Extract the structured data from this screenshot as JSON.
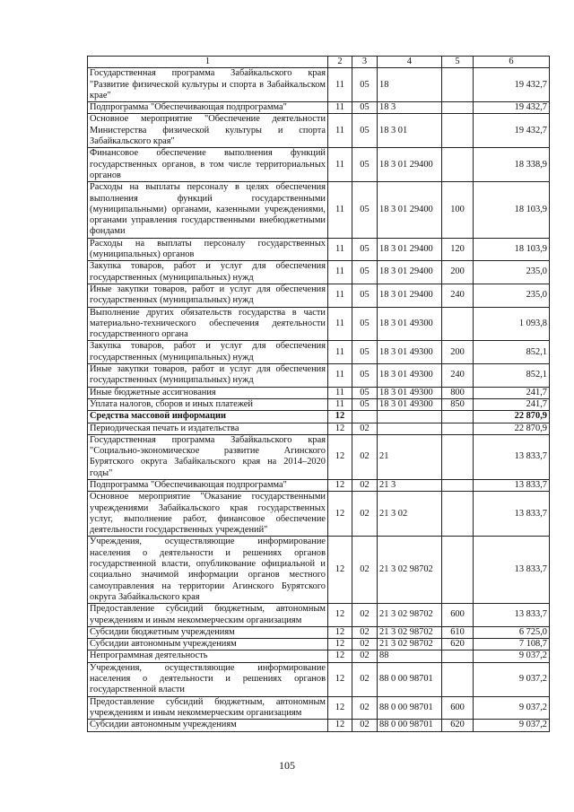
{
  "table": {
    "header": [
      "1",
      "2",
      "3",
      "4",
      "5",
      "6"
    ],
    "rows": [
      {
        "name": "Государственная программа Забайкальского края \"Развитие физической культуры и спорта в Забайкальском крае\"",
        "c2": "11",
        "c3": "05",
        "c4": "18",
        "c5": "",
        "c6": "19 432,7"
      },
      {
        "name": "Подпрограмма \"Обеспечивающая подпрограмма\"",
        "c2": "11",
        "c3": "05",
        "c4": "18 3",
        "c5": "",
        "c6": "19 432,7"
      },
      {
        "name": "Основное мероприятие \"Обеспечение деятельности Министерства физической культуры и спорта Забайкальского края\"",
        "c2": "11",
        "c3": "05",
        "c4": "18 3 01",
        "c5": "",
        "c6": "19 432,7"
      },
      {
        "name": "Финансовое обеспечение выполнения функций государственных органов, в том числе территориальных органов",
        "c2": "11",
        "c3": "05",
        "c4": "18 3 01 29400",
        "c5": "",
        "c6": "18 338,9"
      },
      {
        "name": "Расходы на выплаты персоналу в целях обеспечения выполнения функций государственными (муниципальными) органами, казенными учреждениями, органами управления государственными внебюджетными фондами",
        "c2": "11",
        "c3": "05",
        "c4": "18 3 01 29400",
        "c5": "100",
        "c6": "18 103,9"
      },
      {
        "name": "Расходы на выплаты персоналу государственных (муниципальных) органов",
        "c2": "11",
        "c3": "05",
        "c4": "18 3 01 29400",
        "c5": "120",
        "c6": "18 103,9"
      },
      {
        "name": "Закупка товаров, работ и услуг для обеспечения государственных (муниципальных) нужд",
        "c2": "11",
        "c3": "05",
        "c4": "18 3 01 29400",
        "c5": "200",
        "c6": "235,0"
      },
      {
        "name": "Иные закупки товаров, работ и услуг для обеспечения государственных (муниципальных) нужд",
        "c2": "11",
        "c3": "05",
        "c4": "18 3 01 29400",
        "c5": "240",
        "c6": "235,0"
      },
      {
        "name": "Выполнение других обязательств государства в части материально-технического обеспечения деятельности государственного органа",
        "c2": "11",
        "c3": "05",
        "c4": "18 3 01 49300",
        "c5": "",
        "c6": "1 093,8"
      },
      {
        "name": "Закупка товаров, работ и услуг для обеспечения государственных (муниципальных) нужд",
        "c2": "11",
        "c3": "05",
        "c4": "18 3 01 49300",
        "c5": "200",
        "c6": "852,1"
      },
      {
        "name": "Иные закупки товаров, работ и услуг для обеспечения государственных (муниципальных) нужд",
        "c2": "11",
        "c3": "05",
        "c4": "18 3 01 49300",
        "c5": "240",
        "c6": "852,1"
      },
      {
        "name": "Иные бюджетные ассигнования",
        "c2": "11",
        "c3": "05",
        "c4": "18 3 01 49300",
        "c5": "800",
        "c6": "241,7"
      },
      {
        "name": "Уплата налогов, сборов и иных платежей",
        "c2": "11",
        "c3": "05",
        "c4": "18 3 01 49300",
        "c5": "850",
        "c6": "241,7"
      },
      {
        "name": "Средства массовой информации",
        "c2": "12",
        "c3": "",
        "c4": "",
        "c5": "",
        "c6": "22 870,9",
        "bold": true
      },
      {
        "name": "Периодическая печать и издательства",
        "c2": "12",
        "c3": "02",
        "c4": "",
        "c5": "",
        "c6": "22 870,9"
      },
      {
        "name": "Государственная программа Забайкальского края \"Социально-экономическое развитие Агинского Бурятского округа Забайкальского края на 2014–2020 годы\"",
        "c2": "12",
        "c3": "02",
        "c4": "21",
        "c5": "",
        "c6": "13 833,7"
      },
      {
        "name": "Подпрограмма \"Обеспечивающая подпрограмма\"",
        "c2": "12",
        "c3": "02",
        "c4": "21 3",
        "c5": "",
        "c6": "13 833,7"
      },
      {
        "name": "Основное мероприятие \"Оказание государственными учреждениями Забайкальского края государственных услуг, выполнение работ, финансовое обеспечение деятельности государственных учреждений\"",
        "c2": "12",
        "c3": "02",
        "c4": "21 3 02",
        "c5": "",
        "c6": "13 833,7"
      },
      {
        "name": "Учреждения, осуществляющие информирование населения о деятельности и решениях органов государственной власти, опубликование официальной и социально значимой информации органов местного самоуправления на территории Агинского Бурятского округа Забайкальского края",
        "c2": "12",
        "c3": "02",
        "c4": "21 3 02 98702",
        "c5": "",
        "c6": "13 833,7"
      },
      {
        "name": "Предоставление субсидий бюджетным, автономным учреждениям и иным некоммерческим организациям",
        "c2": "12",
        "c3": "02",
        "c4": "21 3 02 98702",
        "c5": "600",
        "c6": "13 833,7"
      },
      {
        "name": "Субсидии бюджетным учреждениям",
        "c2": "12",
        "c3": "02",
        "c4": "21 3 02 98702",
        "c5": "610",
        "c6": "6 725,0"
      },
      {
        "name": "Субсидии автономным учреждениям",
        "c2": "12",
        "c3": "02",
        "c4": "21 3 02 98702",
        "c5": "620",
        "c6": "7 108,7"
      },
      {
        "name": "Непрограммная деятельность",
        "c2": "12",
        "c3": "02",
        "c4": "88",
        "c5": "",
        "c6": "9 037,2"
      },
      {
        "name": "Учреждения, осуществляющие информирование населения о деятельности и решениях органов государственной власти",
        "c2": "12",
        "c3": "02",
        "c4": "88 0 00 98701",
        "c5": "",
        "c6": "9 037,2"
      },
      {
        "name": "Предоставление субсидий бюджетным, автономным учреждениям и иным некоммерческим организациям",
        "c2": "12",
        "c3": "02",
        "c4": "88 0 00 98701",
        "c5": "600",
        "c6": "9 037,2"
      },
      {
        "name": "Субсидии автономным учреждениям",
        "c2": "12",
        "c3": "02",
        "c4": "88 0 00 98701",
        "c5": "620",
        "c6": "9 037,2"
      }
    ]
  },
  "page_number": "105"
}
